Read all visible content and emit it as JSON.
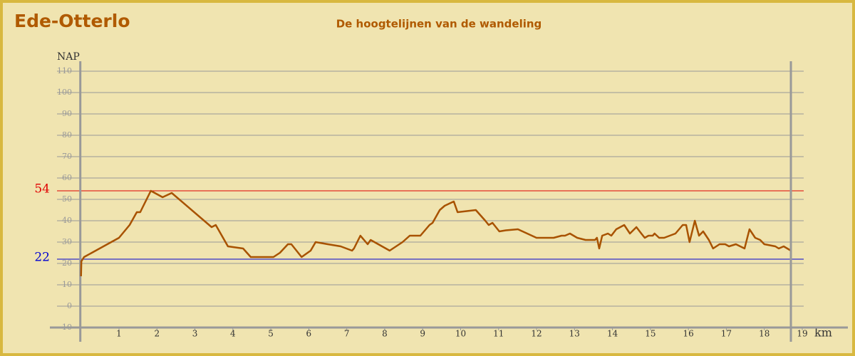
{
  "chart_data": {
    "type": "line",
    "title": "Ede-Otterlo",
    "subtitle": "De hoogtelijnen van de wandeling",
    "y_label": "NAP",
    "x_label": "km",
    "color": "#a85200",
    "grid": true,
    "xlim": [
      0,
      19
    ],
    "ylim": [
      -10,
      110
    ],
    "xticks": [
      1,
      2,
      3,
      4,
      5,
      6,
      7,
      8,
      9,
      10,
      11,
      12,
      13,
      14,
      15,
      16,
      17,
      18,
      19
    ],
    "yticks": [
      -10,
      0,
      10,
      20,
      30,
      40,
      50,
      60,
      70,
      80,
      90,
      100,
      110
    ],
    "reference_lines": [
      {
        "value": 54,
        "color": "#e00000"
      },
      {
        "value": 22,
        "color": "#0000d0"
      }
    ],
    "x": [
      0,
      0.01,
      0.08,
      1.0,
      1.28,
      1.47,
      1.56,
      1.84,
      2.15,
      2.39,
      3.44,
      3.55,
      3.87,
      4.27,
      4.47,
      5.07,
      5.24,
      5.45,
      5.54,
      5.81,
      6.05,
      6.18,
      6.5,
      6.84,
      7.14,
      7.19,
      7.36,
      7.55,
      7.63,
      8.13,
      8.47,
      8.66,
      8.94,
      9.18,
      9.26,
      9.45,
      9.58,
      9.82,
      9.92,
      10.16,
      10.4,
      10.65,
      10.74,
      10.84,
      11.02,
      11.19,
      11.51,
      12.0,
      12.45,
      12.66,
      12.75,
      12.88,
      13.07,
      13.29,
      13.54,
      13.59,
      13.65,
      13.73,
      13.88,
      13.97,
      14.1,
      14.31,
      14.46,
      14.63,
      14.76,
      14.85,
      14.95,
      15.06,
      15.11,
      15.23,
      15.36,
      15.66,
      15.85,
      15.94,
      16.03,
      16.17,
      16.28,
      16.39,
      16.54,
      16.65,
      16.82,
      16.97,
      17.07,
      17.25,
      17.48,
      17.61,
      17.76,
      17.89,
      18.0,
      18.29,
      18.38,
      18.51,
      18.7
    ],
    "values": [
      14,
      21,
      23,
      32,
      38,
      44,
      44,
      54,
      51,
      53,
      37,
      38,
      28,
      27,
      23,
      23,
      25,
      29,
      29,
      23,
      26,
      30,
      29,
      28,
      26,
      27,
      33,
      29,
      31,
      26,
      30,
      33,
      33,
      38,
      39,
      45,
      47,
      49,
      44,
      44.5,
      45,
      40,
      38,
      39,
      35,
      35.5,
      36,
      32,
      32,
      33,
      33,
      34,
      32,
      31,
      31,
      32,
      27,
      33,
      34,
      33,
      36,
      38,
      34,
      37,
      34,
      32,
      33,
      33,
      34,
      32,
      32,
      34,
      38,
      38,
      30,
      40,
      33,
      35,
      31,
      27,
      29,
      29,
      28,
      29,
      27,
      36,
      32,
      31,
      29,
      28,
      27,
      28,
      26
    ]
  }
}
